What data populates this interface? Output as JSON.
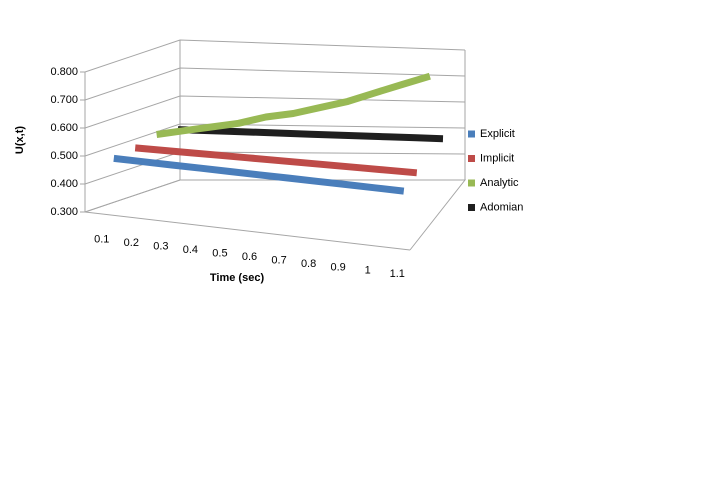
{
  "chart_data": {
    "type": "line3d",
    "y_label": "U(x,t)",
    "x_label": "Time (sec)",
    "categories": [
      "0.1",
      "0.2",
      "0.3",
      "0.4",
      "0.5",
      "0.6",
      "0.7",
      "0.8",
      "0.9",
      "1",
      "1.1"
    ],
    "series": [
      {
        "name": "Explicit",
        "color": "#4a7ebb",
        "values": [
          0.48,
          0.48,
          0.48,
          0.48,
          0.48,
          0.48,
          0.48,
          0.48,
          0.48,
          0.48,
          0.48
        ]
      },
      {
        "name": "Implicit",
        "color": "#be4b48",
        "values": [
          0.49,
          0.49,
          0.49,
          0.49,
          0.49,
          0.49,
          0.49,
          0.49,
          0.49,
          0.49,
          0.49
        ]
      },
      {
        "name": "Analytic",
        "color": "#98b954",
        "values": [
          0.51,
          0.53,
          0.55,
          0.57,
          0.6,
          0.62,
          0.65,
          0.68,
          0.72,
          0.76,
          0.8
        ]
      },
      {
        "name": "Adomian",
        "color": "#1f1f1f",
        "values": [
          0.5,
          0.5,
          0.5,
          0.5,
          0.5,
          0.5,
          0.5,
          0.5,
          0.5,
          0.5,
          0.5
        ]
      }
    ],
    "ylim": [
      0.3,
      0.8
    ],
    "yticks": [
      {
        "value": 0.3,
        "label": "0.300"
      },
      {
        "value": 0.4,
        "label": "0.400"
      },
      {
        "value": 0.5,
        "label": "0.500"
      },
      {
        "value": 0.6,
        "label": "0.600"
      },
      {
        "value": 0.7,
        "label": "0.700"
      },
      {
        "value": 0.8,
        "label": "0.800"
      }
    ],
    "grid": true,
    "legend": "right"
  }
}
